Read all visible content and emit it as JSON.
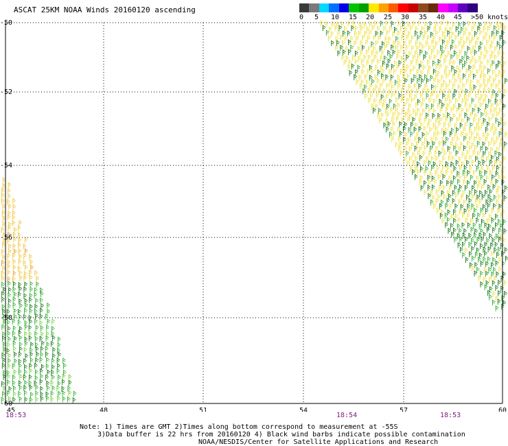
{
  "title": "ASCAT 25KM NOAA Winds 20160120 ascending",
  "colorbar": {
    "colors": [
      "#3a3a3a",
      "#7a7a7a",
      "#00d8ff",
      "#0070ff",
      "#0000e8",
      "#00c400",
      "#00a000",
      "#ffe800",
      "#ffa000",
      "#ff5a00",
      "#ff0000",
      "#c80000",
      "#8c4a1e",
      "#6a2a0a",
      "#ff00ff",
      "#c800ff",
      "#6000c0",
      "#300080"
    ],
    "labels": [
      "0",
      "5",
      "10",
      "15",
      "20",
      "25",
      "30",
      "35",
      "40",
      "45",
      ">50 knots"
    ]
  },
  "axes": {
    "x_ticks": [
      "45",
      "48",
      "51",
      "54",
      "57",
      "60"
    ],
    "y_ticks": [
      "-50",
      "-52",
      "-54",
      "-56",
      "-58",
      "-60"
    ]
  },
  "time_labels": [
    "18:53",
    "18:54",
    "18:53"
  ],
  "notes": {
    "line1": "Note: 1) Times are GMT 2)Times along bottom correspond to measurement at -55S",
    "line2": "3)Data buffer is 22 hrs from 20160120 4) Black wind barbs indicate possible contamination",
    "line3": "NOAA/NESDIS/Center for Satellite Applications and Research"
  }
}
